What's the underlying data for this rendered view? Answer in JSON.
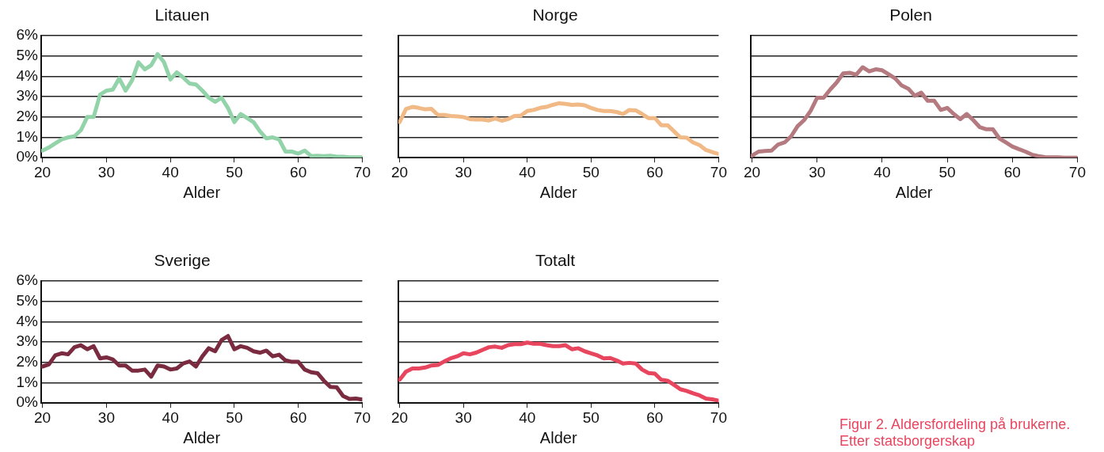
{
  "chart_data": [
    {
      "type": "line",
      "title": "Litauen",
      "xlabel": "Alder",
      "x": [
        20,
        21,
        22,
        23,
        24,
        25,
        26,
        27,
        28,
        29,
        30,
        31,
        32,
        33,
        34,
        35,
        36,
        37,
        38,
        39,
        40,
        41,
        42,
        43,
        44,
        45,
        46,
        47,
        48,
        49,
        50,
        51,
        52,
        53,
        54,
        55,
        56,
        57,
        58,
        59,
        60,
        61,
        62,
        63,
        64,
        65,
        66,
        67,
        68,
        69,
        70
      ],
      "series": [
        {
          "color": "#93d3a9",
          "values": [
            0.35,
            0.5,
            0.7,
            0.9,
            1.0,
            1.05,
            1.35,
            2.0,
            2.0,
            3.1,
            3.3,
            3.35,
            3.9,
            3.3,
            3.8,
            4.7,
            4.35,
            4.55,
            5.1,
            4.7,
            3.85,
            4.2,
            3.95,
            3.65,
            3.6,
            3.3,
            2.95,
            2.75,
            2.95,
            2.45,
            1.75,
            2.15,
            1.95,
            1.75,
            1.3,
            0.95,
            1.0,
            0.9,
            0.3,
            0.3,
            0.2,
            0.35,
            0.08,
            0.1,
            0.08,
            0.1,
            0.05,
            0.05,
            0.02,
            0.02,
            0.02
          ]
        }
      ],
      "xlim": [
        19.8,
        70
      ],
      "xticks": [
        20,
        30,
        40,
        50,
        60,
        70
      ],
      "ylim": [
        0,
        6
      ],
      "yticks": [
        {
          "value": 0,
          "label": "0%"
        },
        {
          "value": 1,
          "label": "1%"
        },
        {
          "value": 2,
          "label": "2%"
        },
        {
          "value": 3,
          "label": "3%"
        },
        {
          "value": 4,
          "label": "4%"
        },
        {
          "value": 5,
          "label": "5%"
        },
        {
          "value": 6,
          "label": "6%"
        }
      ],
      "grid": "y",
      "legend": false,
      "marker": "none",
      "line_style": "solid"
    },
    {
      "type": "line",
      "title": "Norge",
      "xlabel": "Alder",
      "x": [
        20,
        21,
        22,
        23,
        24,
        25,
        26,
        27,
        28,
        29,
        30,
        31,
        32,
        33,
        34,
        35,
        36,
        37,
        38,
        39,
        40,
        41,
        42,
        43,
        44,
        45,
        46,
        47,
        48,
        49,
        50,
        51,
        52,
        53,
        54,
        55,
        56,
        57,
        58,
        59,
        60,
        61,
        62,
        63,
        64,
        65,
        66,
        67,
        68,
        69,
        70
      ],
      "series": [
        {
          "color": "#f0b985",
          "values": [
            1.75,
            2.4,
            2.5,
            2.45,
            2.38,
            2.4,
            2.1,
            2.1,
            2.05,
            2.03,
            2.0,
            1.9,
            1.88,
            1.88,
            1.83,
            1.93,
            1.82,
            1.9,
            2.05,
            2.07,
            2.3,
            2.35,
            2.45,
            2.5,
            2.6,
            2.68,
            2.65,
            2.6,
            2.62,
            2.58,
            2.45,
            2.35,
            2.3,
            2.3,
            2.25,
            2.15,
            2.35,
            2.33,
            2.15,
            1.95,
            1.95,
            1.6,
            1.6,
            1.3,
            1.0,
            0.98,
            0.75,
            0.62,
            0.38,
            0.28,
            0.18
          ]
        }
      ],
      "xlim": [
        19.8,
        70
      ],
      "xticks": [
        20,
        30,
        40,
        50,
        60,
        70
      ],
      "ylim": [
        0,
        6
      ],
      "yticks": [
        0,
        1,
        2,
        3,
        4,
        5,
        6
      ],
      "grid": "y",
      "legend": false,
      "marker": "none",
      "line_style": "solid",
      "tick_labels": "x"
    },
    {
      "type": "line",
      "title": "Polen",
      "xlabel": "Alder",
      "x": [
        20,
        21,
        22,
        23,
        24,
        25,
        26,
        27,
        28,
        29,
        30,
        31,
        32,
        33,
        34,
        35,
        36,
        37,
        38,
        39,
        40,
        41,
        42,
        43,
        44,
        45,
        46,
        47,
        48,
        49,
        50,
        51,
        52,
        53,
        54,
        55,
        56,
        57,
        58,
        59,
        60,
        61,
        62,
        63,
        64,
        65,
        66,
        67,
        68,
        69,
        70
      ],
      "series": [
        {
          "color": "#b57a7f",
          "values": [
            0.1,
            0.3,
            0.33,
            0.35,
            0.65,
            0.75,
            1.05,
            1.55,
            1.85,
            2.3,
            2.95,
            2.95,
            3.35,
            3.7,
            4.15,
            4.18,
            4.08,
            4.45,
            4.25,
            4.35,
            4.3,
            4.1,
            3.9,
            3.55,
            3.4,
            3.05,
            3.2,
            2.8,
            2.8,
            2.35,
            2.45,
            2.15,
            1.9,
            2.15,
            1.85,
            1.5,
            1.4,
            1.4,
            0.95,
            0.75,
            0.55,
            0.42,
            0.3,
            0.15,
            0.08,
            0.03,
            0.02,
            0.02,
            0.0,
            0.0,
            0.0
          ]
        }
      ],
      "xlim": [
        19.8,
        70
      ],
      "xticks": [
        20,
        30,
        40,
        50,
        60,
        70
      ],
      "ylim": [
        0,
        6
      ],
      "yticks": [
        0,
        1,
        2,
        3,
        4,
        5,
        6
      ],
      "grid": "y",
      "legend": false,
      "marker": "none",
      "line_style": "solid",
      "tick_labels": "x"
    },
    {
      "type": "line",
      "title": "Sverige",
      "xlabel": "Alder",
      "x": [
        20,
        21,
        22,
        23,
        24,
        25,
        26,
        27,
        28,
        29,
        30,
        31,
        32,
        33,
        34,
        35,
        36,
        37,
        38,
        39,
        40,
        41,
        42,
        43,
        44,
        45,
        46,
        47,
        48,
        49,
        50,
        51,
        52,
        53,
        54,
        55,
        56,
        57,
        58,
        59,
        60,
        61,
        62,
        63,
        64,
        65,
        66,
        67,
        68,
        69,
        70
      ],
      "series": [
        {
          "color": "#7a2b40",
          "values": [
            1.8,
            1.9,
            2.35,
            2.45,
            2.4,
            2.75,
            2.85,
            2.65,
            2.8,
            2.2,
            2.25,
            2.15,
            1.85,
            1.85,
            1.6,
            1.6,
            1.65,
            1.3,
            1.85,
            1.8,
            1.65,
            1.7,
            1.95,
            2.05,
            1.8,
            2.3,
            2.7,
            2.55,
            3.1,
            3.3,
            2.65,
            2.8,
            2.72,
            2.55,
            2.48,
            2.58,
            2.3,
            2.38,
            2.1,
            2.03,
            2.03,
            1.65,
            1.52,
            1.47,
            1.1,
            0.8,
            0.78,
            0.35,
            0.2,
            0.22,
            0.17
          ]
        }
      ],
      "xlim": [
        19.8,
        70
      ],
      "xticks": [
        20,
        30,
        40,
        50,
        60,
        70
      ],
      "ylim": [
        0,
        6
      ],
      "yticks": [
        {
          "value": 0,
          "label": "0%"
        },
        {
          "value": 1,
          "label": "1%"
        },
        {
          "value": 2,
          "label": "2%"
        },
        {
          "value": 3,
          "label": "3%"
        },
        {
          "value": 4,
          "label": "4%"
        },
        {
          "value": 5,
          "label": "5%"
        },
        {
          "value": 6,
          "label": "6%"
        }
      ],
      "grid": "y",
      "legend": false,
      "marker": "none",
      "line_style": "solid"
    },
    {
      "type": "line",
      "title": "Totalt",
      "xlabel": "Alder",
      "x": [
        20,
        21,
        22,
        23,
        24,
        25,
        26,
        27,
        28,
        29,
        30,
        31,
        32,
        33,
        34,
        35,
        36,
        37,
        38,
        39,
        40,
        41,
        42,
        43,
        44,
        45,
        46,
        47,
        48,
        49,
        50,
        51,
        52,
        53,
        54,
        55,
        56,
        57,
        58,
        59,
        60,
        61,
        62,
        63,
        64,
        65,
        66,
        67,
        68,
        69,
        70
      ],
      "series": [
        {
          "color": "#e8455f",
          "values": [
            1.15,
            1.55,
            1.7,
            1.7,
            1.75,
            1.85,
            1.88,
            2.05,
            2.2,
            2.3,
            2.45,
            2.4,
            2.48,
            2.62,
            2.75,
            2.78,
            2.72,
            2.85,
            2.9,
            2.9,
            2.98,
            2.92,
            2.92,
            2.85,
            2.8,
            2.8,
            2.85,
            2.65,
            2.7,
            2.55,
            2.45,
            2.35,
            2.2,
            2.22,
            2.1,
            1.95,
            1.98,
            1.95,
            1.65,
            1.48,
            1.45,
            1.15,
            1.1,
            0.9,
            0.68,
            0.6,
            0.48,
            0.38,
            0.22,
            0.18,
            0.12
          ]
        }
      ],
      "xlim": [
        19.8,
        70
      ],
      "xticks": [
        20,
        30,
        40,
        50,
        60,
        70
      ],
      "ylim": [
        0,
        6
      ],
      "yticks": [
        0,
        1,
        2,
        3,
        4,
        5,
        6
      ],
      "grid": "y",
      "legend": false,
      "marker": "none",
      "line_style": "solid",
      "tick_labels": "x",
      "annotations": [
        "Figur 2. Aldersfordeling på brukerne. Etter statsborgerskap"
      ]
    }
  ]
}
